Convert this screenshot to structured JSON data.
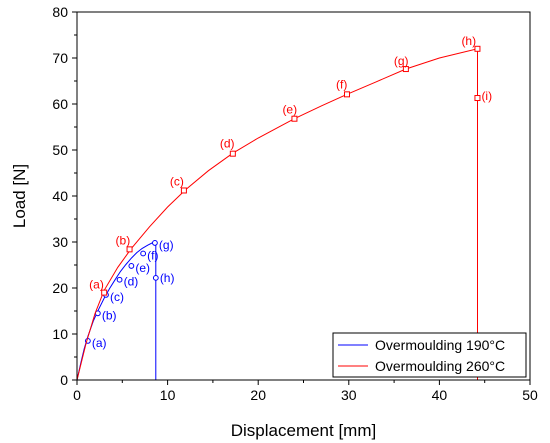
{
  "chart_data": {
    "type": "line",
    "xlabel": "Displacement [mm]",
    "ylabel": "Load [N]",
    "xlim": [
      0,
      50
    ],
    "ylim": [
      0,
      80
    ],
    "xticks": [
      0,
      10,
      20,
      30,
      40,
      50
    ],
    "yticks": [
      0,
      10,
      20,
      30,
      40,
      50,
      60,
      70,
      80
    ],
    "grid": false,
    "legend_position": "bottom-right",
    "series": [
      {
        "name": "Overmoulding 190°C",
        "color": "#0000ff",
        "marker": "circle",
        "x": [
          0,
          0.4,
          0.8,
          1.2,
          1.8,
          2.4,
          3.0,
          3.6,
          4.2,
          4.8,
          5.4,
          6.0,
          6.6,
          7.2,
          7.8,
          8.3,
          8.7,
          8.7,
          8.7,
          8.7
        ],
        "y": [
          0,
          3.5,
          6.8,
          9.5,
          12.8,
          15.4,
          17.8,
          19.9,
          21.8,
          23.6,
          25.1,
          26.5,
          27.7,
          28.6,
          29.3,
          29.8,
          30.0,
          29.0,
          22.0,
          0
        ],
        "points": [
          {
            "label": "(a)",
            "x": 1.2,
            "y": 8.5
          },
          {
            "label": "(b)",
            "x": 2.3,
            "y": 14.5
          },
          {
            "label": "(c)",
            "x": 3.2,
            "y": 18.5
          },
          {
            "label": "(d)",
            "x": 4.7,
            "y": 21.8
          },
          {
            "label": "(e)",
            "x": 6.0,
            "y": 24.8
          },
          {
            "label": "(f)",
            "x": 7.3,
            "y": 27.5
          },
          {
            "label": "(g)",
            "x": 8.6,
            "y": 29.8
          },
          {
            "label": "(h)",
            "x": 8.7,
            "y": 22.2
          }
        ]
      },
      {
        "name": "Overmoulding 260°C",
        "color": "#ff0000",
        "marker": "square",
        "x": [
          0,
          1.0,
          2.0,
          3.0,
          4.5,
          6.0,
          8.0,
          10.0,
          12.0,
          14.5,
          17.2,
          20.0,
          24.0,
          27.0,
          29.8,
          33.0,
          36.3,
          40.0,
          44.2,
          44.2,
          44.2,
          44.2
        ],
        "y": [
          0,
          8.0,
          14.5,
          19.5,
          24.5,
          28.6,
          33.3,
          37.6,
          41.4,
          45.5,
          49.3,
          52.6,
          56.8,
          59.6,
          62.1,
          64.8,
          67.6,
          70.0,
          72.0,
          71.5,
          61.5,
          0
        ],
        "points": [
          {
            "label": "(a)",
            "x": 3.0,
            "y": 19.0
          },
          {
            "label": "(b)",
            "x": 5.8,
            "y": 28.4
          },
          {
            "label": "(c)",
            "x": 11.8,
            "y": 41.2
          },
          {
            "label": "(d)",
            "x": 17.2,
            "y": 49.2
          },
          {
            "label": "(e)",
            "x": 24.0,
            "y": 56.8
          },
          {
            "label": "(f)",
            "x": 29.8,
            "y": 62.1
          },
          {
            "label": "(g)",
            "x": 36.3,
            "y": 67.6
          },
          {
            "label": "(h)",
            "x": 44.2,
            "y": 72.0
          },
          {
            "label": "(i)",
            "x": 44.2,
            "y": 61.3
          }
        ]
      }
    ]
  }
}
